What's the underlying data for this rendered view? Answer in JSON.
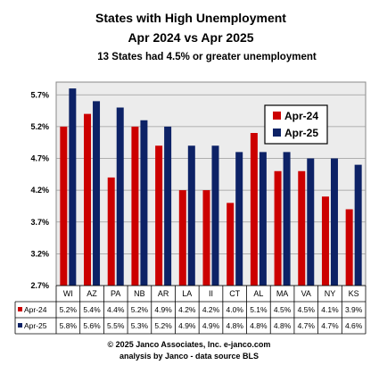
{
  "chart_data": {
    "type": "bar",
    "title": "States with High Unemployment",
    "subtitle": "Apr 2024 vs Apr 2025",
    "subtitle2": "13  States had 4.5% or greater unemployment",
    "categories": [
      "WI",
      "AZ",
      "PA",
      "NB",
      "AR",
      "LA",
      "II",
      "CT",
      "AL",
      "MA",
      "VA",
      "NY",
      "KS"
    ],
    "series": [
      {
        "name": "Apr-24",
        "color": "#cc0000",
        "values": [
          5.2,
          5.4,
          4.4,
          5.2,
          4.9,
          4.2,
          4.2,
          4.0,
          5.1,
          4.5,
          4.5,
          4.1,
          3.9
        ],
        "labels": [
          "5.2%",
          "5.4%",
          "4.4%",
          "5.2%",
          "4.9%",
          "4.2%",
          "4.2%",
          "4.0%",
          "5.1%",
          "4.5%",
          "4.5%",
          "4.1%",
          "3.9%"
        ]
      },
      {
        "name": "Apr-25",
        "color": "#0d2266",
        "values": [
          5.8,
          5.6,
          5.5,
          5.3,
          5.2,
          4.9,
          4.9,
          4.8,
          4.8,
          4.8,
          4.7,
          4.7,
          4.6
        ],
        "labels": [
          "5.8%",
          "5.6%",
          "5.5%",
          "5.3%",
          "5.2%",
          "4.9%",
          "4.9%",
          "4.8%",
          "4.8%",
          "4.8%",
          "4.7%",
          "4.7%",
          "4.6%"
        ]
      }
    ],
    "y_ticks": [
      "5.7%",
      "5.2%",
      "4.7%",
      "4.2%",
      "3.7%",
      "3.2%",
      "2.7%"
    ],
    "y_tick_values": [
      5.7,
      5.2,
      4.7,
      4.2,
      3.7,
      3.2,
      2.7
    ],
    "ylim": [
      2.7,
      5.9
    ],
    "grid": true,
    "legend": "top-right",
    "data_table": true
  },
  "footer": {
    "line1": "© 2025 Janco Associates, Inc. e-janco.com",
    "line2": "analysis by Janco - data source BLS"
  }
}
